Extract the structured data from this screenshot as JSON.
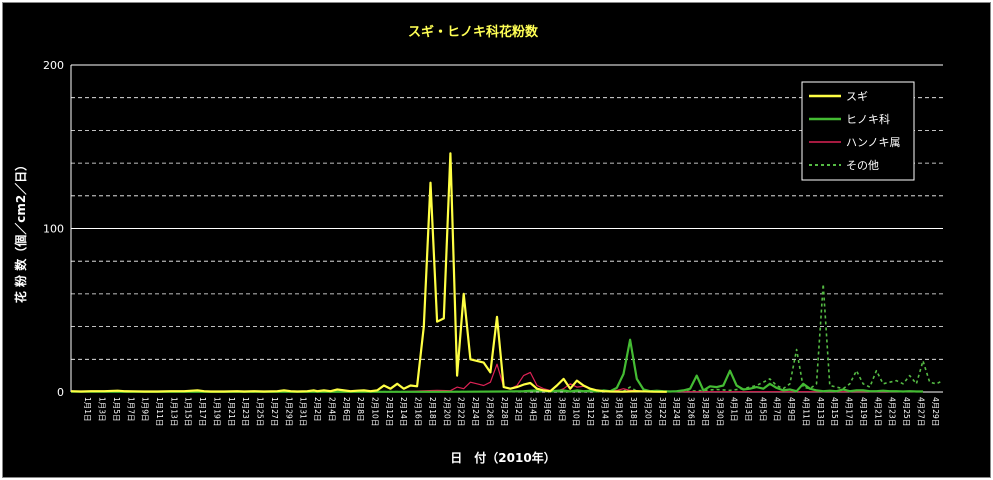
{
  "chart_data": {
    "type": "line",
    "title": "スギ・ヒノキ科花粉数",
    "xlabel": "日　付（2010年）",
    "ylabel": "花 粉 数（個／cm2／日）",
    "ylim": [
      0,
      200
    ],
    "yticks": [
      "0",
      "100",
      "200"
    ],
    "grid": true,
    "legend_position": "top-right",
    "colors": {
      "background": "#000000",
      "title": "#ffff55",
      "text": "#ffffff",
      "grid": "#ffffff",
      "sugi": "#ffff44",
      "hinoki": "#44bb33",
      "hannoki": "#dd2255",
      "other": "#55bb44"
    },
    "x_labels": [
      "1月1日",
      "1月3日",
      "1月5日",
      "1月7日",
      "1月9日",
      "1月11日",
      "1月13日",
      "1月15日",
      "1月17日",
      "1月19日",
      "1月21日",
      "1月23日",
      "1月25日",
      "1月27日",
      "1月29日",
      "1月31日",
      "2月2日",
      "2月4日",
      "2月6日",
      "2月8日",
      "2月10日",
      "2月12日",
      "2月14日",
      "2月16日",
      "2月18日",
      "2月20日",
      "2月22日",
      "2月24日",
      "2月26日",
      "2月28日",
      "3月2日",
      "3月4日",
      "3月6日",
      "3月8日",
      "3月10日",
      "3月12日",
      "3月14日",
      "3月16日",
      "3月18日",
      "3月20日",
      "3月22日",
      "3月24日",
      "3月26日",
      "3月28日",
      "3月30日",
      "4月1日",
      "4月3日",
      "4月5日",
      "4月7日",
      "4月9日",
      "4月11日",
      "4月13日",
      "4月15日",
      "4月17日",
      "4月19日",
      "4月21日",
      "4月23日",
      "4月25日",
      "4月27日",
      "4月29日"
    ],
    "series": [
      {
        "name": "スギ",
        "key": "sugi",
        "dash": false,
        "width": 2.2,
        "points": [
          [
            0,
            0.5
          ],
          [
            3,
            0.3
          ],
          [
            6,
            0.5
          ],
          [
            10,
            0.5
          ],
          [
            14,
            0.8
          ],
          [
            16,
            0.5
          ],
          [
            19,
            0.4
          ],
          [
            22,
            0.3
          ],
          [
            26,
            0.3
          ],
          [
            30,
            0.5
          ],
          [
            34,
            0.5
          ],
          [
            38,
            1.0
          ],
          [
            40,
            0.5
          ],
          [
            42,
            0.3
          ],
          [
            46,
            0.3
          ],
          [
            50,
            0.5
          ],
          [
            52,
            0.3
          ],
          [
            55,
            0.5
          ],
          [
            58,
            0.3
          ],
          [
            62,
            0.5
          ],
          [
            64,
            1.0
          ],
          [
            66,
            0.5
          ],
          [
            68,
            0.3
          ],
          [
            71,
            0.5
          ],
          [
            73,
            1.0
          ],
          [
            74,
            0.5
          ],
          [
            76,
            1.0
          ],
          [
            78,
            0.5
          ],
          [
            80,
            1.5
          ],
          [
            82,
            1.0
          ],
          [
            84,
            0.5
          ],
          [
            86,
            0.8
          ],
          [
            88,
            1.0
          ],
          [
            90,
            0.5
          ],
          [
            92,
            1.0
          ],
          [
            94,
            4.0
          ],
          [
            96,
            2.0
          ],
          [
            98,
            5.0
          ],
          [
            100,
            2.0
          ],
          [
            102,
            4.0
          ],
          [
            104,
            3.5
          ],
          [
            106,
            40.0
          ],
          [
            108,
            128.0
          ],
          [
            110,
            43.0
          ],
          [
            112,
            45.0
          ],
          [
            114,
            146.0
          ],
          [
            116,
            10.0
          ],
          [
            118,
            60.0
          ],
          [
            120,
            20.0
          ],
          [
            122,
            19.0
          ],
          [
            124,
            18.0
          ],
          [
            126,
            12.0
          ],
          [
            128,
            46.0
          ],
          [
            130,
            3.0
          ],
          [
            132,
            2.0
          ],
          [
            134,
            3.0
          ],
          [
            136,
            4.5
          ],
          [
            138,
            5.5
          ],
          [
            140,
            2.0
          ],
          [
            142,
            1.0
          ],
          [
            144,
            0.5
          ],
          [
            146,
            4.0
          ],
          [
            148,
            8.0
          ],
          [
            150,
            2.0
          ],
          [
            152,
            7.0
          ],
          [
            154,
            4.0
          ],
          [
            156,
            2.0
          ],
          [
            158,
            1.0
          ],
          [
            160,
            0.5
          ],
          [
            162,
            0.3
          ],
          [
            166,
            0.2
          ],
          [
            170,
            0.5
          ],
          [
            175,
            0.2
          ],
          [
            179,
            0.1
          ]
        ]
      },
      {
        "name": "ヒノキ科",
        "key": "hinoki",
        "dash": false,
        "width": 2.2,
        "points": [
          [
            0,
            0.2
          ],
          [
            60,
            0.1
          ],
          [
            110,
            0.1
          ],
          [
            120,
            0.2
          ],
          [
            130,
            0.3
          ],
          [
            136,
            0.5
          ],
          [
            140,
            1.0
          ],
          [
            144,
            0.5
          ],
          [
            148,
            1.0
          ],
          [
            150,
            0.3
          ],
          [
            152,
            1.0
          ],
          [
            154,
            0.5
          ],
          [
            156,
            0.8
          ],
          [
            158,
            0.3
          ],
          [
            160,
            1.0
          ],
          [
            162,
            0.5
          ],
          [
            164,
            2.5
          ],
          [
            166,
            11.0
          ],
          [
            168,
            32.0
          ],
          [
            170,
            8.0
          ],
          [
            172,
            1.5
          ],
          [
            174,
            0.5
          ],
          [
            176,
            0.8
          ],
          [
            178,
            0.5
          ],
          [
            180,
            0.3
          ],
          [
            182,
            0.5
          ],
          [
            184,
            1.0
          ],
          [
            186,
            2.0
          ],
          [
            188,
            10.0
          ],
          [
            190,
            1.0
          ],
          [
            192,
            3.5
          ],
          [
            194,
            3.0
          ],
          [
            196,
            4.0
          ],
          [
            198,
            13.0
          ],
          [
            200,
            4.0
          ],
          [
            202,
            1.5
          ],
          [
            204,
            2.0
          ],
          [
            206,
            3.0
          ],
          [
            208,
            2.0
          ],
          [
            210,
            5.0
          ],
          [
            212,
            2.5
          ],
          [
            214,
            1.0
          ],
          [
            216,
            1.5
          ],
          [
            218,
            0.5
          ],
          [
            220,
            5.0
          ],
          [
            222,
            2.0
          ],
          [
            224,
            1.0
          ],
          [
            226,
            0.5
          ],
          [
            228,
            0.8
          ],
          [
            230,
            0.5
          ],
          [
            232,
            1.5
          ],
          [
            234,
            0.5
          ],
          [
            236,
            1.0
          ],
          [
            238,
            1.0
          ],
          [
            240,
            0.5
          ],
          [
            242,
            0.5
          ],
          [
            244,
            0.8
          ],
          [
            246,
            0.5
          ],
          [
            248,
            0.5
          ],
          [
            250,
            0.3
          ],
          [
            252,
            0.5
          ],
          [
            254,
            0.3
          ],
          [
            256,
            0.3
          ]
        ]
      },
      {
        "name": "ハンノキ属",
        "key": "hannoki",
        "dash": false,
        "width": 1.2,
        "points": [
          [
            0,
            0.2
          ],
          [
            90,
            0.2
          ],
          [
            100,
            0.3
          ],
          [
            110,
            1.0
          ],
          [
            114,
            0.8
          ],
          [
            116,
            3.0
          ],
          [
            118,
            2.0
          ],
          [
            120,
            6.0
          ],
          [
            122,
            5.0
          ],
          [
            124,
            4.0
          ],
          [
            126,
            6.0
          ],
          [
            128,
            17.0
          ],
          [
            130,
            3.0
          ],
          [
            132,
            2.0
          ],
          [
            134,
            4.0
          ],
          [
            136,
            10.0
          ],
          [
            138,
            12.0
          ],
          [
            140,
            4.0
          ],
          [
            142,
            2.0
          ],
          [
            144,
            1.0
          ],
          [
            146,
            0.5
          ],
          [
            148,
            2.0
          ],
          [
            150,
            5.0
          ],
          [
            152,
            3.0
          ],
          [
            154,
            3.5
          ],
          [
            156,
            2.0
          ],
          [
            158,
            1.0
          ],
          [
            160,
            0.5
          ],
          [
            162,
            0.8
          ],
          [
            164,
            1.0
          ],
          [
            166,
            2.0
          ],
          [
            168,
            1.0
          ],
          [
            170,
            0.8
          ],
          [
            172,
            0.5
          ],
          [
            176,
            0.3
          ],
          [
            180,
            0.2
          ],
          [
            190,
            0.2
          ],
          [
            256,
            0.2
          ]
        ]
      },
      {
        "name": "その他",
        "key": "other",
        "dash": true,
        "width": 1.6,
        "points": [
          [
            0,
            0.2
          ],
          [
            160,
            0.2
          ],
          [
            166,
            0.5
          ],
          [
            168,
            3.0
          ],
          [
            170,
            0.5
          ],
          [
            172,
            0.3
          ],
          [
            180,
            0.3
          ],
          [
            186,
            0.5
          ],
          [
            190,
            1.0
          ],
          [
            194,
            1.5
          ],
          [
            198,
            1.0
          ],
          [
            202,
            2.0
          ],
          [
            206,
            4.0
          ],
          [
            208,
            6.0
          ],
          [
            210,
            8.0
          ],
          [
            212,
            4.0
          ],
          [
            214,
            2.0
          ],
          [
            216,
            5.0
          ],
          [
            218,
            26.0
          ],
          [
            220,
            3.0
          ],
          [
            222,
            2.0
          ],
          [
            224,
            5.0
          ],
          [
            226,
            66.0
          ],
          [
            228,
            4.0
          ],
          [
            230,
            3.0
          ],
          [
            232,
            2.0
          ],
          [
            234,
            5.0
          ],
          [
            236,
            13.0
          ],
          [
            238,
            5.0
          ],
          [
            240,
            3.0
          ],
          [
            242,
            13.0
          ],
          [
            244,
            5.0
          ],
          [
            246,
            6.0
          ],
          [
            248,
            7.0
          ],
          [
            250,
            5.0
          ],
          [
            252,
            10.0
          ],
          [
            254,
            5.0
          ],
          [
            256,
            19.0
          ],
          [
            258,
            6.0
          ],
          [
            260,
            5.0
          ],
          [
            262,
            7.0
          ]
        ]
      }
    ]
  }
}
